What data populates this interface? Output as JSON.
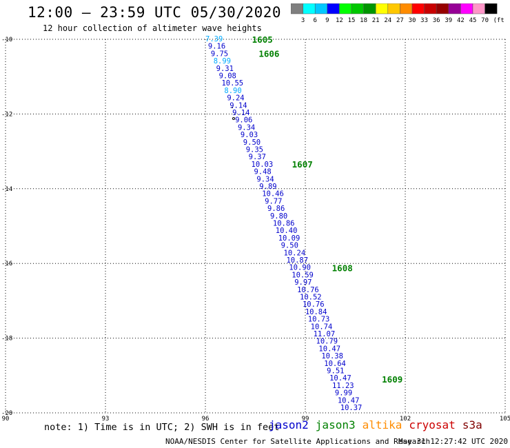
{
  "header": {
    "title": "12:00 – 23:59 UTC 05/30/2020",
    "subtitle": "12 hour collection of altimeter wave heights"
  },
  "colorbar": {
    "colors": [
      "#7f7f7f",
      "#00ffff",
      "#00c8ff",
      "#0000ff",
      "#00ff00",
      "#00c800",
      "#009600",
      "#ffff00",
      "#ffc800",
      "#ff8c00",
      "#ff0000",
      "#c80000",
      "#960000",
      "#960096",
      "#ff00ff",
      "#ff96c8",
      "#000000"
    ],
    "labels": [
      "3",
      "6",
      "9",
      "12",
      "15",
      "18",
      "21",
      "24",
      "27",
      "30",
      "33",
      "36",
      "39",
      "42",
      "45",
      "70"
    ],
    "unit": "(ft)"
  },
  "map": {
    "lon_range": [
      90,
      105
    ],
    "lat_range": [
      -20,
      -10
    ],
    "lon_ticks": [
      "90",
      "93",
      "96",
      "99",
      "102",
      "105"
    ],
    "lat_ticks": [
      "-10",
      "-12",
      "-14",
      "-16",
      "-18",
      "-20"
    ],
    "grid": "dotted"
  },
  "chart_data": {
    "type": "scatter",
    "track_color_cyan": "#00aaff",
    "track_color_blue": "#0000cc",
    "pass_color": "#008000",
    "pass_labels": [
      {
        "text": "1605",
        "lon": 97.4,
        "lat": -10.0
      },
      {
        "text": "1606",
        "lon": 97.6,
        "lat": -10.38
      },
      {
        "text": "1607",
        "lon": 98.6,
        "lat": -13.34
      },
      {
        "text": "1608",
        "lon": 99.8,
        "lat": -16.12
      },
      {
        "text": "1609",
        "lon": 101.3,
        "lat": -19.1
      }
    ],
    "observations": [
      {
        "value": "7.39",
        "color": "cyan"
      },
      {
        "value": "9.16",
        "color": "blue"
      },
      {
        "value": "9.75",
        "color": "blue"
      },
      {
        "value": "8.99",
        "color": "cyan"
      },
      {
        "value": "9.31",
        "color": "blue"
      },
      {
        "value": "9.08",
        "color": "blue"
      },
      {
        "value": "10.55",
        "color": "blue"
      },
      {
        "value": "8.90",
        "color": "cyan"
      },
      {
        "value": "9.24",
        "color": "blue"
      },
      {
        "value": "9.14",
        "color": "blue"
      },
      {
        "value": "9.14",
        "color": "blue"
      },
      {
        "value": "9.06",
        "color": "blue"
      },
      {
        "value": "9.34",
        "color": "blue"
      },
      {
        "value": "9.03",
        "color": "blue"
      },
      {
        "value": "9.50",
        "color": "blue"
      },
      {
        "value": "9.35",
        "color": "blue"
      },
      {
        "value": "9.37",
        "color": "blue"
      },
      {
        "value": "10.03",
        "color": "blue"
      },
      {
        "value": "9.48",
        "color": "blue"
      },
      {
        "value": "9.34",
        "color": "blue"
      },
      {
        "value": "9.89",
        "color": "blue"
      },
      {
        "value": "10.46",
        "color": "blue"
      },
      {
        "value": "9.77",
        "color": "blue"
      },
      {
        "value": "9.86",
        "color": "blue"
      },
      {
        "value": "9.80",
        "color": "blue"
      },
      {
        "value": "10.86",
        "color": "blue"
      },
      {
        "value": "10.40",
        "color": "blue"
      },
      {
        "value": "10.09",
        "color": "blue"
      },
      {
        "value": "9.50",
        "color": "blue"
      },
      {
        "value": "10.24",
        "color": "blue"
      },
      {
        "value": "10.87",
        "color": "blue"
      },
      {
        "value": "10.90",
        "color": "blue"
      },
      {
        "value": "10.59",
        "color": "blue"
      },
      {
        "value": "9.97",
        "color": "blue"
      },
      {
        "value": "10.76",
        "color": "blue"
      },
      {
        "value": "10.52",
        "color": "blue"
      },
      {
        "value": "10.76",
        "color": "blue"
      },
      {
        "value": "10.84",
        "color": "blue"
      },
      {
        "value": "10.73",
        "color": "blue"
      },
      {
        "value": "10.74",
        "color": "blue"
      },
      {
        "value": "11.07",
        "color": "blue"
      },
      {
        "value": "10.79",
        "color": "blue"
      },
      {
        "value": "10.47",
        "color": "blue"
      },
      {
        "value": "10.38",
        "color": "blue"
      },
      {
        "value": "10.64",
        "color": "blue"
      },
      {
        "value": "9.51",
        "color": "blue"
      },
      {
        "value": "10.47",
        "color": "blue"
      },
      {
        "value": "11.23",
        "color": "blue"
      },
      {
        "value": "9.99",
        "color": "blue"
      },
      {
        "value": "10.47",
        "color": "blue"
      },
      {
        "value": "10.37",
        "color": "blue"
      }
    ]
  },
  "footer": {
    "note": "note: 1) Time is in UTC; 2) SWH is in feet",
    "legend": [
      {
        "label": "jason2",
        "color": "#0000cc"
      },
      {
        "label": "jason3",
        "color": "#008000"
      },
      {
        "label": "altika",
        "color": "#ff8c00"
      },
      {
        "label": "cryosat",
        "color": "#cc0000"
      },
      {
        "label": "s3a",
        "color": "#800000"
      }
    ],
    "credit": "NOAA/NESDIS Center for Satellite Applications and Research",
    "timestamp": "May 31 12:27:42 UTC 2020"
  }
}
